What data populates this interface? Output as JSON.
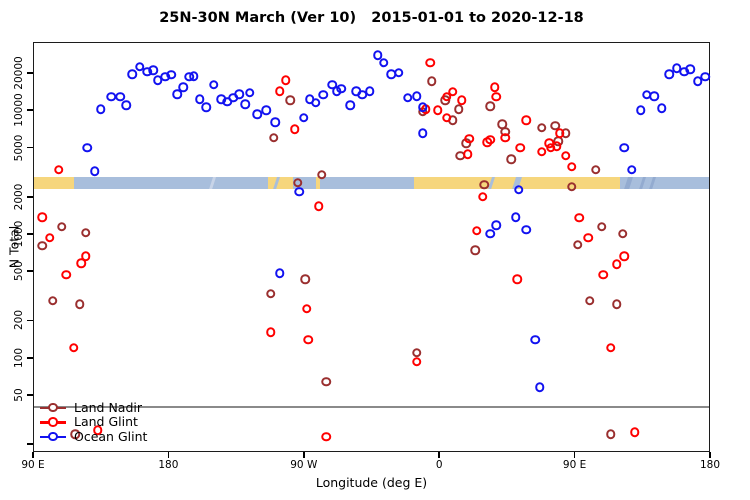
{
  "title": "25N-30N March (Ver 10)   2015-01-01 to 2020-12-18",
  "axes": {
    "x": {
      "label": "Longitude (deg E)",
      "note": "continuous longitude 90E eastward around globe to 180 (90..540)",
      "ticks": [
        {
          "lon": 90,
          "label": "90 E"
        },
        {
          "lon": 180,
          "label": "180"
        },
        {
          "lon": 270,
          "label": "90 W"
        },
        {
          "lon": 360,
          "label": "0"
        },
        {
          "lon": 450,
          "label": "90 E"
        },
        {
          "lon": 540,
          "label": "180"
        }
      ]
    },
    "y": {
      "label": "N Total",
      "scale": "log10",
      "ticks": [
        {
          "value": 20000,
          "label": "20000"
        },
        {
          "value": 10000,
          "label": "10000"
        },
        {
          "value": 5000,
          "label": "5000"
        },
        {
          "value": 2000,
          "label": "2000"
        },
        {
          "value": 1000,
          "label": "1000"
        },
        {
          "value": 500,
          "label": "500"
        },
        {
          "value": 200,
          "label": "200"
        },
        {
          "value": 100,
          "label": "100"
        },
        {
          "value": 50,
          "label": "50"
        },
        {
          "value": 20,
          "label": ""
        }
      ]
    }
  },
  "reference_line": {
    "value": 40,
    "color": "#8a8a8a"
  },
  "legend": {
    "entries": [
      {
        "label": "Land Nadir",
        "color": "#9a2f2f"
      },
      {
        "label": "Land Glint",
        "color": "#ff0000"
      },
      {
        "label": "Ocean Glint",
        "color": "#1212f0"
      }
    ]
  },
  "chart_data": {
    "type": "scatter",
    "xlabel": "Longitude (deg E)",
    "ylabel": "N Total",
    "x_range": [
      90,
      540
    ],
    "y_range_log": [
      17,
      36000
    ],
    "grid": false,
    "legend_position": "bottom-left",
    "band": {
      "meaning": "land/ocean strip at latitude 25N-30N",
      "value_top": 2900,
      "value_bottom": 2300,
      "land_color": "#f6d67d",
      "ocean_color": "#a8bedc",
      "segments": [
        {
          "from": 90,
          "to": 117,
          "type": "land"
        },
        {
          "from": 117,
          "to": 246,
          "type": "ocean"
        },
        {
          "from": 246,
          "to": 263,
          "type": "land"
        },
        {
          "from": 263,
          "to": 278,
          "type": "ocean"
        },
        {
          "from": 278,
          "to": 281,
          "type": "land"
        },
        {
          "from": 281,
          "to": 343,
          "type": "ocean"
        },
        {
          "from": 343,
          "to": 480,
          "type": "land"
        },
        {
          "from": 480,
          "to": 540,
          "type": "ocean"
        }
      ],
      "slivers": [
        {
          "from": 394,
          "to": 396,
          "color": "#a8bedc"
        },
        {
          "from": 410,
          "to": 414,
          "color": "#a8bedc"
        },
        {
          "from": 251,
          "to": 253,
          "color": "#a8bedc"
        },
        {
          "from": 208,
          "to": 210,
          "color": "#c8d4e8"
        },
        {
          "from": 484,
          "to": 487,
          "color": "#93abd0"
        },
        {
          "from": 494,
          "to": 496,
          "color": "#93abd0"
        },
        {
          "from": 501,
          "to": 503,
          "color": "#93abd0"
        }
      ]
    },
    "series": [
      {
        "name": "Land Nadir",
        "color": "#9a2f2f",
        "marker": "open-circle",
        "points": [
          [
            261,
            12100
          ],
          [
            250,
            6000
          ],
          [
            355,
            17200
          ],
          [
            349,
            9700
          ],
          [
            364,
            12100
          ],
          [
            373,
            10200
          ],
          [
            369,
            8300
          ],
          [
            394,
            10800
          ],
          [
            378,
            5400
          ],
          [
            374,
            4300
          ],
          [
            408,
            4000
          ],
          [
            464,
            3300
          ],
          [
            402,
            7700
          ],
          [
            428,
            7200
          ],
          [
            439,
            5600
          ],
          [
            437,
            7500
          ],
          [
            444,
            6500
          ],
          [
            404,
            6700
          ],
          [
            448,
            2400
          ],
          [
            390,
            2500
          ],
          [
            266,
            2600
          ],
          [
            282,
            3000
          ],
          [
            468,
            1140
          ],
          [
            452,
            820
          ],
          [
            482,
            1000
          ],
          [
            460,
            290
          ],
          [
            478,
            270
          ],
          [
            384,
            740
          ],
          [
            345,
            110
          ],
          [
            109,
            1140
          ],
          [
            125,
            1020
          ],
          [
            96,
            800
          ],
          [
            103,
            290
          ],
          [
            121,
            270
          ],
          [
            271,
            430
          ],
          [
            248,
            330
          ],
          [
            285,
            64
          ],
          [
            118,
            24
          ],
          [
            474,
            24
          ]
        ]
      },
      {
        "name": "Land Glint",
        "color": "#ff0000",
        "marker": "open-circle",
        "points": [
          [
            254,
            14300
          ],
          [
            258,
            17500
          ],
          [
            264,
            7000
          ],
          [
            107,
            3300
          ],
          [
            96,
            1370
          ],
          [
            101,
            930
          ],
          [
            112,
            470
          ],
          [
            122,
            580
          ],
          [
            125,
            660
          ],
          [
            117,
            120
          ],
          [
            133,
            26
          ],
          [
            285,
            23
          ],
          [
            280,
            1680
          ],
          [
            272,
            250
          ],
          [
            248,
            160
          ],
          [
            273,
            140
          ],
          [
            354,
            24100
          ],
          [
            351,
            10200
          ],
          [
            359,
            10000
          ],
          [
            369,
            14100
          ],
          [
            365,
            12800
          ],
          [
            375,
            12100
          ],
          [
            365,
            8700
          ],
          [
            397,
            15400
          ],
          [
            398,
            12800
          ],
          [
            418,
            8300
          ],
          [
            404,
            6000
          ],
          [
            394,
            5800
          ],
          [
            380,
            5900
          ],
          [
            433,
            5400
          ],
          [
            440,
            6500
          ],
          [
            379,
            4400
          ],
          [
            392,
            5500
          ],
          [
            414,
            5000
          ],
          [
            428,
            4600
          ],
          [
            434,
            5000
          ],
          [
            438,
            5100
          ],
          [
            444,
            4300
          ],
          [
            448,
            3500
          ],
          [
            389,
            2000
          ],
          [
            385,
            1060
          ],
          [
            453,
            1350
          ],
          [
            459,
            930
          ],
          [
            483,
            660
          ],
          [
            469,
            470
          ],
          [
            478,
            570
          ],
          [
            412,
            430
          ],
          [
            474,
            120
          ],
          [
            490,
            25
          ],
          [
            345,
            93
          ]
        ]
      },
      {
        "name": "Ocean Glint",
        "color": "#1212f0",
        "marker": "open-circle",
        "points": [
          [
            135,
            10200
          ],
          [
            142,
            12800
          ],
          [
            148,
            12800
          ],
          [
            152,
            11000
          ],
          [
            156,
            19600
          ],
          [
            161,
            22400
          ],
          [
            166,
            20400
          ],
          [
            170,
            21100
          ],
          [
            173,
            17500
          ],
          [
            178,
            18600
          ],
          [
            182,
            19300
          ],
          [
            186,
            13500
          ],
          [
            190,
            15400
          ],
          [
            194,
            18600
          ],
          [
            197,
            18900
          ],
          [
            201,
            12300
          ],
          [
            205,
            10600
          ],
          [
            210,
            16000
          ],
          [
            215,
            12300
          ],
          [
            219,
            11700
          ],
          [
            223,
            12600
          ],
          [
            227,
            13500
          ],
          [
            231,
            11200
          ],
          [
            234,
            13800
          ],
          [
            239,
            9300
          ],
          [
            245,
            10000
          ],
          [
            251,
            8000
          ],
          [
            270,
            8700
          ],
          [
            274,
            12300
          ],
          [
            278,
            11500
          ],
          [
            283,
            13300
          ],
          [
            289,
            16000
          ],
          [
            292,
            14300
          ],
          [
            295,
            14900
          ],
          [
            301,
            11000
          ],
          [
            305,
            14300
          ],
          [
            309,
            13300
          ],
          [
            314,
            14300
          ],
          [
            319,
            27900
          ],
          [
            323,
            24100
          ],
          [
            328,
            19600
          ],
          [
            333,
            20000
          ],
          [
            339,
            12600
          ],
          [
            345,
            13000
          ],
          [
            349,
            10600
          ],
          [
            349,
            6500
          ],
          [
            126,
            5000
          ],
          [
            131,
            3200
          ],
          [
            267,
            2200
          ],
          [
            413,
            2270
          ],
          [
            411,
            1370
          ],
          [
            398,
            1180
          ],
          [
            394,
            1000
          ],
          [
            418,
            1080
          ],
          [
            483,
            5000
          ],
          [
            488,
            3300
          ],
          [
            494,
            10000
          ],
          [
            498,
            13300
          ],
          [
            503,
            13000
          ],
          [
            508,
            10400
          ],
          [
            513,
            19600
          ],
          [
            518,
            21900
          ],
          [
            523,
            20400
          ],
          [
            527,
            21500
          ],
          [
            532,
            17200
          ],
          [
            537,
            18600
          ],
          [
            254,
            480
          ],
          [
            424,
            140
          ],
          [
            427,
            58
          ]
        ]
      }
    ]
  }
}
